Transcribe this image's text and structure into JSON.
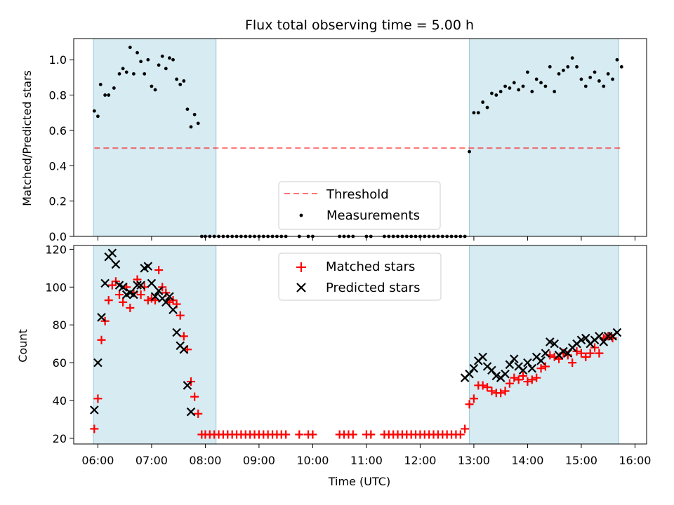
{
  "chart_data": [
    {
      "type": "scatter",
      "title": "Flux total observing time = 5.00 h",
      "ylabel": "Matched/Predicted stars",
      "xlabel": "",
      "ylim": [
        0,
        1.12
      ],
      "yticks": [
        "0.0",
        "0.2",
        "0.4",
        "0.6",
        "0.8",
        "1.0"
      ],
      "threshold": 0.5,
      "legend": {
        "placement": "lower-center",
        "entries": [
          "Threshold",
          "Measurements"
        ]
      },
      "shaded_regions": [
        [
          "05:55",
          "08:12"
        ],
        [
          "12:55",
          "15:42"
        ]
      ],
      "series": [
        {
          "name": "Measurements",
          "color": "#000000",
          "x": [
            "05:56",
            "06:00",
            "06:03",
            "06:08",
            "06:12",
            "06:18",
            "06:24",
            "06:28",
            "06:32",
            "06:36",
            "06:40",
            "06:44",
            "06:48",
            "06:52",
            "06:56",
            "07:00",
            "07:04",
            "07:08",
            "07:12",
            "07:16",
            "07:20",
            "07:24",
            "07:28",
            "07:32",
            "07:36",
            "07:40",
            "07:44",
            "07:48",
            "07:52",
            "07:56",
            "08:00",
            "08:05",
            "08:10",
            "08:15",
            "08:20",
            "08:25",
            "08:30",
            "08:35",
            "08:40",
            "08:45",
            "08:50",
            "08:55",
            "09:00",
            "09:05",
            "09:10",
            "09:15",
            "09:20",
            "09:25",
            "09:30",
            "09:45",
            "09:55",
            "10:00",
            "10:30",
            "10:35",
            "10:40",
            "10:45",
            "11:00",
            "11:05",
            "11:20",
            "11:25",
            "11:30",
            "11:35",
            "11:40",
            "11:45",
            "11:50",
            "11:55",
            "12:00",
            "12:05",
            "12:10",
            "12:15",
            "12:20",
            "12:25",
            "12:30",
            "12:35",
            "12:40",
            "12:45",
            "12:50",
            "12:55",
            "13:00",
            "13:05",
            "13:10",
            "13:15",
            "13:20",
            "13:25",
            "13:30",
            "13:35",
            "13:40",
            "13:45",
            "13:50",
            "13:55",
            "14:00",
            "14:05",
            "14:10",
            "14:15",
            "14:20",
            "14:25",
            "14:30",
            "14:35",
            "14:40",
            "14:45",
            "14:50",
            "14:55",
            "15:00",
            "15:05",
            "15:10",
            "15:15",
            "15:20",
            "15:25",
            "15:30",
            "15:35",
            "15:40",
            "15:45"
          ],
          "y": [
            0.71,
            0.68,
            0.86,
            0.8,
            0.8,
            0.84,
            0.92,
            0.95,
            0.93,
            1.07,
            0.92,
            1.04,
            0.99,
            0.92,
            1.0,
            0.85,
            0.83,
            0.97,
            1.02,
            0.95,
            1.01,
            1.0,
            0.89,
            0.86,
            0.88,
            0.72,
            0.62,
            0.69,
            0.64,
            0.0,
            0.0,
            0.0,
            0.0,
            0.0,
            0.0,
            0.0,
            0.0,
            0.0,
            0.0,
            0.0,
            0.0,
            0.0,
            0.0,
            0.0,
            0.0,
            0.0,
            0.0,
            0.0,
            0.0,
            0.0,
            0.0,
            0.0,
            0.0,
            0.0,
            0.0,
            0.0,
            0.0,
            0.0,
            0.0,
            0.0,
            0.0,
            0.0,
            0.0,
            0.0,
            0.0,
            0.0,
            0.0,
            0.0,
            0.0,
            0.0,
            0.0,
            0.0,
            0.0,
            0.0,
            0.0,
            0.0,
            0.0,
            0.48,
            0.7,
            0.7,
            0.76,
            0.73,
            0.81,
            0.8,
            0.82,
            0.85,
            0.84,
            0.87,
            0.83,
            0.85,
            0.93,
            0.82,
            0.89,
            0.87,
            0.85,
            0.96,
            0.82,
            0.92,
            0.94,
            0.96,
            1.01,
            0.96,
            0.89,
            0.85,
            0.9,
            0.93,
            0.88,
            0.85,
            0.92,
            0.89,
            1.0,
            0.96
          ]
        }
      ]
    },
    {
      "type": "scatter",
      "title": "",
      "ylabel": "Count",
      "xlabel": "Time (UTC)",
      "ylim": [
        17,
        122
      ],
      "yticks": [
        "20",
        "40",
        "60",
        "80",
        "100",
        "120"
      ],
      "xlim": [
        "05:33",
        "16:13"
      ],
      "xticks": [
        "06:00",
        "07:00",
        "08:00",
        "09:00",
        "10:00",
        "11:00",
        "12:00",
        "13:00",
        "14:00",
        "15:00",
        "16:00"
      ],
      "legend": {
        "placement": "upper-center",
        "entries": [
          "Matched stars",
          "Predicted stars"
        ]
      },
      "shaded_regions": [
        [
          "05:55",
          "08:12"
        ],
        [
          "12:55",
          "15:42"
        ]
      ],
      "x": [
        "05:56",
        "06:00",
        "06:04",
        "06:08",
        "06:12",
        "06:16",
        "06:20",
        "06:24",
        "06:28",
        "06:32",
        "06:36",
        "06:40",
        "06:44",
        "06:48",
        "06:52",
        "06:56",
        "07:00",
        "07:04",
        "07:08",
        "07:12",
        "07:16",
        "07:20",
        "07:24",
        "07:28",
        "07:32",
        "07:36",
        "07:40",
        "07:44",
        "07:48",
        "07:52",
        "07:56",
        "08:00",
        "08:05",
        "08:10",
        "08:15",
        "08:20",
        "08:25",
        "08:30",
        "08:35",
        "08:40",
        "08:45",
        "08:50",
        "08:55",
        "09:00",
        "09:05",
        "09:10",
        "09:15",
        "09:20",
        "09:25",
        "09:30",
        "09:45",
        "09:55",
        "10:00",
        "10:30",
        "10:35",
        "10:40",
        "10:45",
        "11:00",
        "11:05",
        "11:20",
        "11:25",
        "11:30",
        "11:35",
        "11:40",
        "11:45",
        "11:50",
        "11:55",
        "12:00",
        "12:05",
        "12:10",
        "12:15",
        "12:20",
        "12:25",
        "12:30",
        "12:35",
        "12:40",
        "12:45",
        "12:50",
        "12:55",
        "13:00",
        "13:05",
        "13:10",
        "13:15",
        "13:20",
        "13:25",
        "13:30",
        "13:35",
        "13:40",
        "13:45",
        "13:50",
        "13:55",
        "14:00",
        "14:05",
        "14:10",
        "14:15",
        "14:20",
        "14:25",
        "14:30",
        "14:35",
        "14:40",
        "14:45",
        "14:50",
        "14:55",
        "15:00",
        "15:05",
        "15:10",
        "15:15",
        "15:20",
        "15:25",
        "15:30",
        "15:35",
        "15:40",
        "15:45"
      ],
      "series": [
        {
          "name": "Matched stars",
          "color": "#ff0000",
          "marker": "plus",
          "y": [
            25,
            41,
            72,
            82,
            93,
            101,
            103,
            96,
            92,
            100,
            89,
            97,
            104,
            96,
            100,
            93,
            94,
            93,
            109,
            100,
            97,
            92,
            93,
            91,
            85,
            74,
            67,
            50,
            42,
            33,
            22,
            22,
            22,
            22,
            22,
            22,
            22,
            22,
            22,
            22,
            22,
            22,
            22,
            22,
            22,
            22,
            22,
            22,
            22,
            22,
            22,
            22,
            22,
            22,
            22,
            22,
            22,
            22,
            22,
            22,
            22,
            22,
            22,
            22,
            22,
            22,
            22,
            22,
            22,
            22,
            22,
            22,
            22,
            22,
            22,
            22,
            22,
            25,
            38,
            41,
            48,
            48,
            47,
            45,
            44,
            44,
            45,
            49,
            52,
            51,
            53,
            50,
            51,
            52,
            57,
            58,
            64,
            63,
            62,
            65,
            64,
            60,
            66,
            65,
            63,
            65,
            68,
            65,
            73,
            74,
            73
          ]
        },
        {
          "name": "Predicted stars",
          "color": "#000000",
          "marker": "x",
          "y": [
            35,
            60,
            84,
            102,
            116,
            118,
            112,
            101,
            100,
            96,
            97,
            96,
            101,
            101,
            110,
            111,
            102,
            95,
            98,
            94,
            92,
            95,
            88,
            76,
            69,
            67,
            48,
            34,
            null,
            null,
            null,
            null,
            null,
            null,
            null,
            null,
            null,
            null,
            null,
            null,
            null,
            null,
            null,
            null,
            null,
            null,
            null,
            null,
            null,
            null,
            null,
            null,
            null,
            null,
            null,
            null,
            null,
            null,
            null,
            null,
            null,
            null,
            null,
            null,
            null,
            null,
            null,
            null,
            null,
            null,
            null,
            null,
            null,
            null,
            null,
            null,
            null,
            52,
            54,
            57,
            61,
            63,
            58,
            56,
            53,
            52,
            54,
            59,
            62,
            58,
            56,
            60,
            57,
            63,
            61,
            65,
            71,
            70,
            64,
            66,
            65,
            68,
            70,
            72,
            73,
            70,
            72,
            74,
            71,
            74,
            74,
            76
          ]
        }
      ]
    }
  ]
}
